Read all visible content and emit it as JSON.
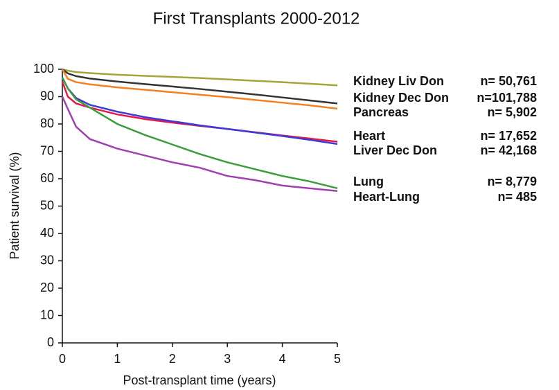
{
  "chart_data": {
    "type": "line",
    "title": "First Transplants 2000-2012",
    "xlabel": "Post-transplant time (years)",
    "ylabel": "Patient survival (%)",
    "x": [
      0,
      0.1,
      0.25,
      0.5,
      1,
      1.5,
      2,
      2.5,
      3,
      3.5,
      4,
      4.5,
      5
    ],
    "xlim": [
      0,
      5
    ],
    "xticks": [
      0,
      1,
      2,
      3,
      4,
      5
    ],
    "ylim": [
      0,
      100
    ],
    "yticks": [
      0,
      10,
      20,
      30,
      40,
      50,
      60,
      70,
      80,
      90,
      100
    ],
    "grid": false,
    "series": [
      {
        "name": "Kidney Liv Don",
        "count_label": "n= 50,761",
        "color": "#a3a53a",
        "values": [
          100,
          99.5,
          99,
          98.6,
          98,
          97.6,
          97.2,
          96.8,
          96.3,
          95.8,
          95.3,
          94.7,
          94.1
        ]
      },
      {
        "name": "Kidney Dec Don",
        "count_label": "n=101,788",
        "color": "#333333",
        "values": [
          100,
          98.5,
          97.5,
          96.6,
          95.5,
          94.6,
          93.7,
          92.8,
          91.8,
          90.8,
          89.7,
          88.6,
          87.5
        ]
      },
      {
        "name": "Pancreas",
        "count_label": "n= 5,902",
        "color": "#f5801f",
        "values": [
          100,
          96.5,
          95.3,
          94.5,
          93.4,
          92.5,
          91.6,
          90.7,
          89.8,
          88.8,
          87.8,
          86.8,
          85.6
        ]
      },
      {
        "name": "Heart",
        "count_label": "n= 17,652",
        "color": "#e8174a",
        "values": [
          95.5,
          90,
          87.5,
          86,
          83.5,
          81.8,
          80.5,
          79.3,
          78.2,
          77,
          75.8,
          74.7,
          73.5
        ]
      },
      {
        "name": "Liver Dec Don",
        "count_label": "n= 42,168",
        "color": "#3b3bd6",
        "values": [
          97,
          93,
          89.5,
          87,
          84.5,
          82.5,
          81,
          79.5,
          78.2,
          76.9,
          75.6,
          74.2,
          72.7
        ]
      },
      {
        "name": "Lung",
        "count_label": "n= 8,779",
        "color": "#3a9d3a",
        "values": [
          97,
          93,
          89,
          86,
          80,
          76,
          72.5,
          69,
          66,
          63.5,
          61,
          59,
          56.5
        ]
      },
      {
        "name": "Heart-Lung",
        "count_label": "n= 485",
        "color": "#a040b0",
        "values": [
          90,
          85.5,
          79,
          74.5,
          71,
          68.5,
          66,
          64,
          61,
          59.5,
          57.5,
          56.5,
          55.5
        ]
      }
    ]
  }
}
